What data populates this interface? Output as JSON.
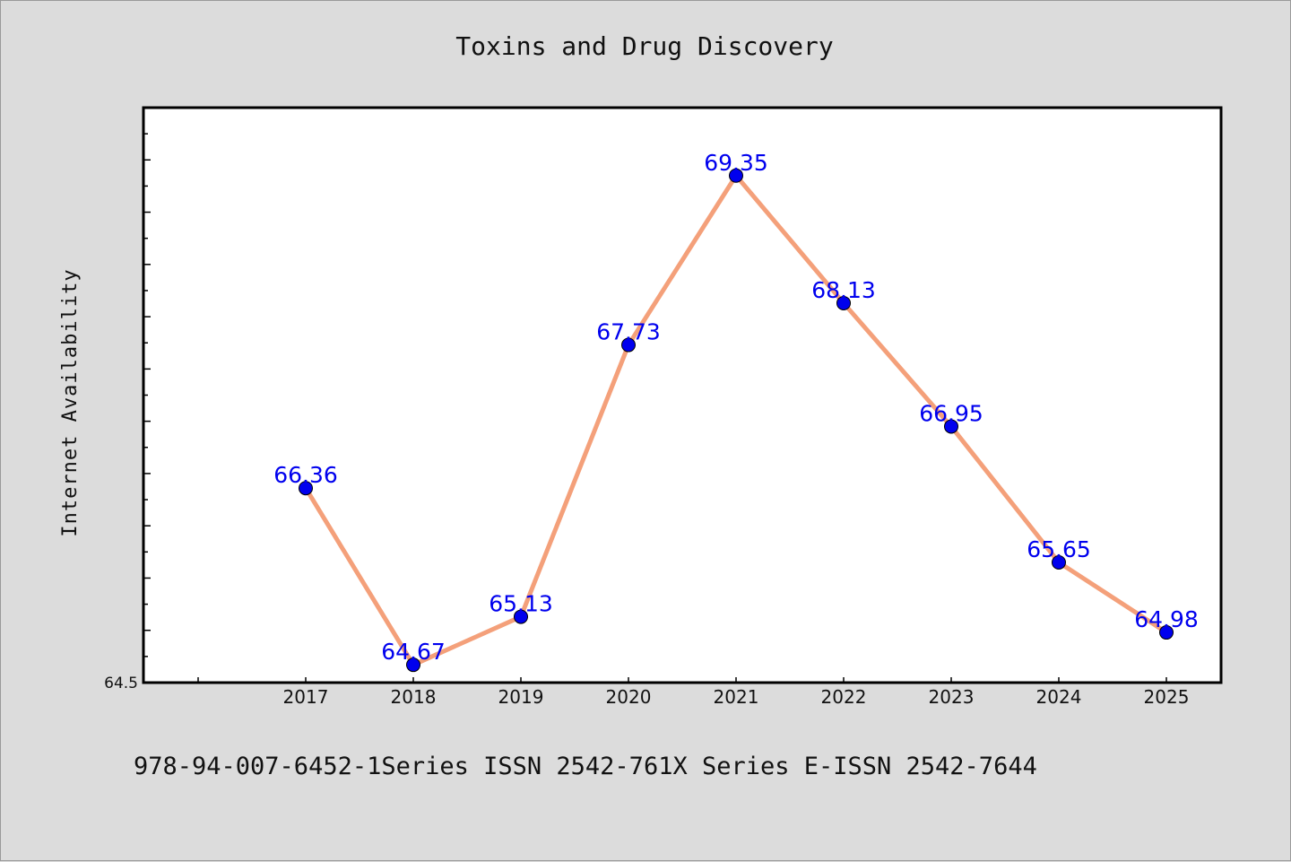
{
  "chart_data": {
    "type": "line",
    "title": "Toxins and Drug Discovery",
    "ylabel": "Internet Availability",
    "xlabel": "",
    "categories": [
      "2017",
      "2018",
      "2019",
      "2020",
      "2021",
      "2022",
      "2023",
      "2024",
      "2025"
    ],
    "series": [
      {
        "values": [
          66.36,
          64.67,
          65.13,
          67.73,
          69.35,
          68.13,
          66.95,
          65.65,
          64.98
        ],
        "line_color": "#f4a07a",
        "marker_color": "#0000ee"
      }
    ],
    "ylim": [
      64.5,
      70.0
    ],
    "y_tick_labels": [
      "64.5"
    ],
    "grid": false,
    "legend": "none",
    "data_label_color": "#0000ee"
  },
  "footer_text": "978-94-007-6452-1Series ISSN 2542-761X Series E-ISSN 2542-7644"
}
